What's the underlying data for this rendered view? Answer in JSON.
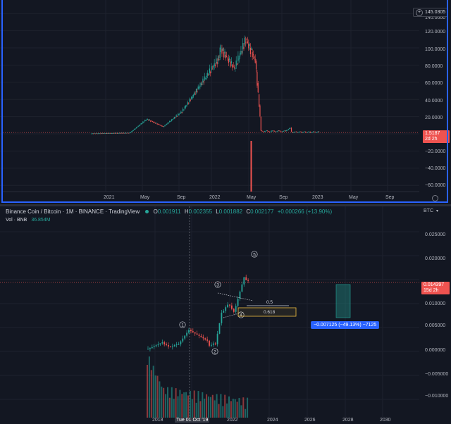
{
  "top_chart": {
    "price_axis": [
      "140.0000",
      "120.0000",
      "100.0000",
      "80.0000",
      "60.0000",
      "40.0000",
      "20.0000",
      "0.0000",
      "−20.0000",
      "−40.0000",
      "−60.0000"
    ],
    "time_axis": [
      "2021",
      "May",
      "Sep",
      "2022",
      "May",
      "Sep",
      "2023",
      "May",
      "Sep"
    ],
    "max_label": "145.0305",
    "last_price": "1.5187",
    "last_price_countdown": "2d 2h",
    "colors": {
      "up": "#26a69a",
      "down": "#ef5350",
      "border": "#2962ff"
    }
  },
  "bottom_chart": {
    "title": "Binance Coin / Bitcoin · 1M · BINANCE · TradingView",
    "ohlc": {
      "o_label": "O",
      "o": "0.001911",
      "h_label": "H",
      "h": "0.002355",
      "l_label": "L",
      "l": "0.001882",
      "c_label": "C",
      "c": "0.002177",
      "change": "+0.000266 (+13.90%)"
    },
    "volume_label": "Vol · BNB",
    "volume_value": "36.854M",
    "currency": "BTC",
    "price_axis": [
      "0.025000",
      "0.020000",
      "0.015000",
      "0.010000",
      "0.005000",
      "0.000000",
      "−0.005000",
      "−0.010000"
    ],
    "time_axis": [
      "2018",
      "Tue 01 Oct '19",
      "2022",
      "2024",
      "2026",
      "2028",
      "2030"
    ],
    "last_price": "0.014397",
    "last_price_countdown": "15d 2h",
    "waves": [
      "1",
      "2",
      "3",
      "4",
      "5"
    ],
    "fib_levels": [
      "0.5",
      "0.618"
    ],
    "measure_label": "−0.007125 (−49.13%) −7125"
  }
}
